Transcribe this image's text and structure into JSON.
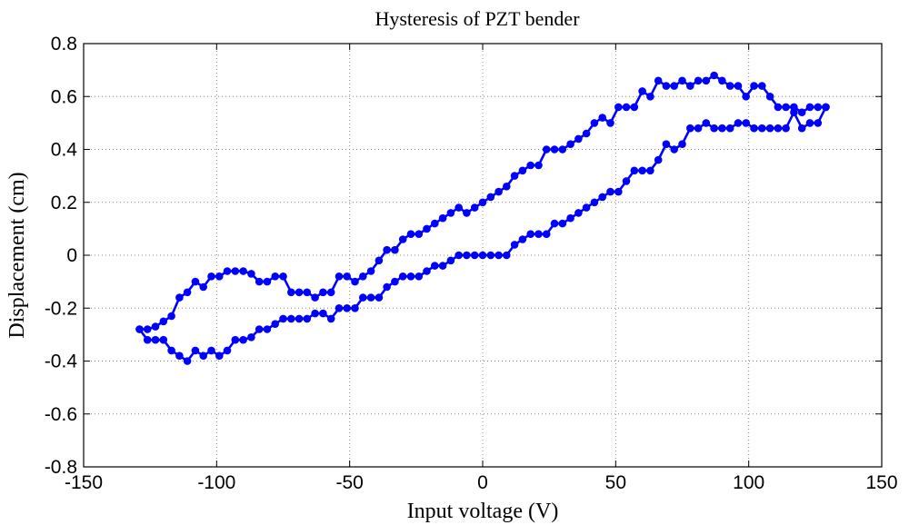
{
  "chart_data": {
    "type": "line",
    "title": "Hysteresis of PZT bender",
    "xlabel": "Input voltage (V)",
    "ylabel": "Displacement (cm)",
    "xlim": [
      -150,
      150
    ],
    "ylim": [
      -0.8,
      0.8
    ],
    "xticks": [
      -150,
      -100,
      -50,
      0,
      50,
      100,
      150
    ],
    "xtick_labels": [
      "-150",
      "-100",
      "-50",
      "0",
      "50",
      "100",
      "150"
    ],
    "yticks": [
      -0.8,
      -0.6,
      -0.4,
      -0.2,
      0,
      0.2,
      0.4,
      0.6,
      0.8
    ],
    "ytick_labels": [
      "-0.8",
      "-0.6",
      "-0.4",
      "-0.2",
      "0",
      "0.2",
      "0.4",
      "0.6",
      "0.8"
    ],
    "grid": true,
    "series": [
      {
        "color": "#0000ff",
        "marker": "circle",
        "x": [
          -129,
          -126,
          -123,
          -120,
          -117,
          -114,
          -111,
          -108,
          -105,
          -102,
          -99,
          -96,
          -93,
          -90,
          -87,
          -84,
          -81,
          -78,
          -75,
          -72,
          -69,
          -66,
          -63,
          -60,
          -57,
          -54,
          -51,
          -48,
          -45,
          -42,
          -39,
          -36,
          -33,
          -30,
          -27,
          -24,
          -21,
          -18,
          -15,
          -12,
          -9,
          -6,
          -3,
          0,
          3,
          6,
          9,
          12,
          15,
          18,
          21,
          24,
          27,
          30,
          33,
          36,
          39,
          42,
          45,
          48,
          51,
          54,
          57,
          60,
          63,
          66,
          69,
          72,
          75,
          78,
          81,
          84,
          87,
          90,
          93,
          96,
          99,
          102,
          105,
          108,
          111,
          114,
          117,
          120,
          123,
          126,
          129
        ],
        "y": [
          -0.28,
          -0.28,
          -0.27,
          -0.25,
          -0.23,
          -0.16,
          -0.14,
          -0.1,
          -0.12,
          -0.08,
          -0.08,
          -0.06,
          -0.06,
          -0.06,
          -0.07,
          -0.1,
          -0.1,
          -0.08,
          -0.08,
          -0.14,
          -0.14,
          -0.14,
          -0.16,
          -0.14,
          -0.14,
          -0.08,
          -0.08,
          -0.1,
          -0.08,
          -0.06,
          -0.02,
          0.02,
          0.02,
          0.06,
          0.08,
          0.08,
          0.1,
          0.12,
          0.14,
          0.16,
          0.18,
          0.16,
          0.18,
          0.2,
          0.22,
          0.24,
          0.26,
          0.3,
          0.32,
          0.34,
          0.34,
          0.4,
          0.4,
          0.4,
          0.42,
          0.44,
          0.46,
          0.5,
          0.52,
          0.5,
          0.56,
          0.56,
          0.56,
          0.62,
          0.6,
          0.66,
          0.64,
          0.64,
          0.66,
          0.64,
          0.66,
          0.66,
          0.68,
          0.66,
          0.64,
          0.64,
          0.6,
          0.64,
          0.64,
          0.6,
          0.56,
          0.56,
          0.56,
          0.54,
          0.56,
          0.56,
          0.56
        ]
      },
      {
        "color": "#0000ff",
        "marker": "circle",
        "x": [
          129,
          126,
          123,
          120,
          117,
          114,
          111,
          108,
          105,
          102,
          99,
          96,
          93,
          90,
          87,
          84,
          81,
          78,
          75,
          72,
          69,
          66,
          63,
          60,
          57,
          54,
          51,
          48,
          45,
          42,
          39,
          36,
          33,
          30,
          27,
          24,
          21,
          18,
          15,
          12,
          9,
          6,
          3,
          0,
          -3,
          -6,
          -9,
          -12,
          -15,
          -18,
          -21,
          -24,
          -27,
          -30,
          -33,
          -36,
          -39,
          -42,
          -45,
          -48,
          -51,
          -54,
          -57,
          -60,
          -63,
          -66,
          -69,
          -72,
          -75,
          -78,
          -81,
          -84,
          -87,
          -90,
          -93,
          -96,
          -99,
          -102,
          -105,
          -108,
          -111,
          -114,
          -117,
          -120,
          -123,
          -126,
          -129
        ],
        "y": [
          0.56,
          0.5,
          0.5,
          0.48,
          0.54,
          0.48,
          0.48,
          0.48,
          0.48,
          0.48,
          0.5,
          0.5,
          0.48,
          0.48,
          0.48,
          0.5,
          0.48,
          0.48,
          0.42,
          0.4,
          0.42,
          0.36,
          0.32,
          0.32,
          0.32,
          0.28,
          0.24,
          0.24,
          0.22,
          0.2,
          0.18,
          0.16,
          0.14,
          0.12,
          0.12,
          0.08,
          0.08,
          0.08,
          0.06,
          0.04,
          0.0,
          0.0,
          0.0,
          0.0,
          0.0,
          0.0,
          0.0,
          -0.02,
          -0.04,
          -0.04,
          -0.06,
          -0.08,
          -0.08,
          -0.08,
          -0.1,
          -0.12,
          -0.16,
          -0.16,
          -0.16,
          -0.2,
          -0.2,
          -0.2,
          -0.24,
          -0.22,
          -0.22,
          -0.24,
          -0.24,
          -0.24,
          -0.24,
          -0.26,
          -0.28,
          -0.28,
          -0.31,
          -0.32,
          -0.32,
          -0.36,
          -0.38,
          -0.36,
          -0.38,
          -0.36,
          -0.4,
          -0.38,
          -0.36,
          -0.32,
          -0.32,
          -0.32,
          -0.28
        ]
      }
    ]
  }
}
